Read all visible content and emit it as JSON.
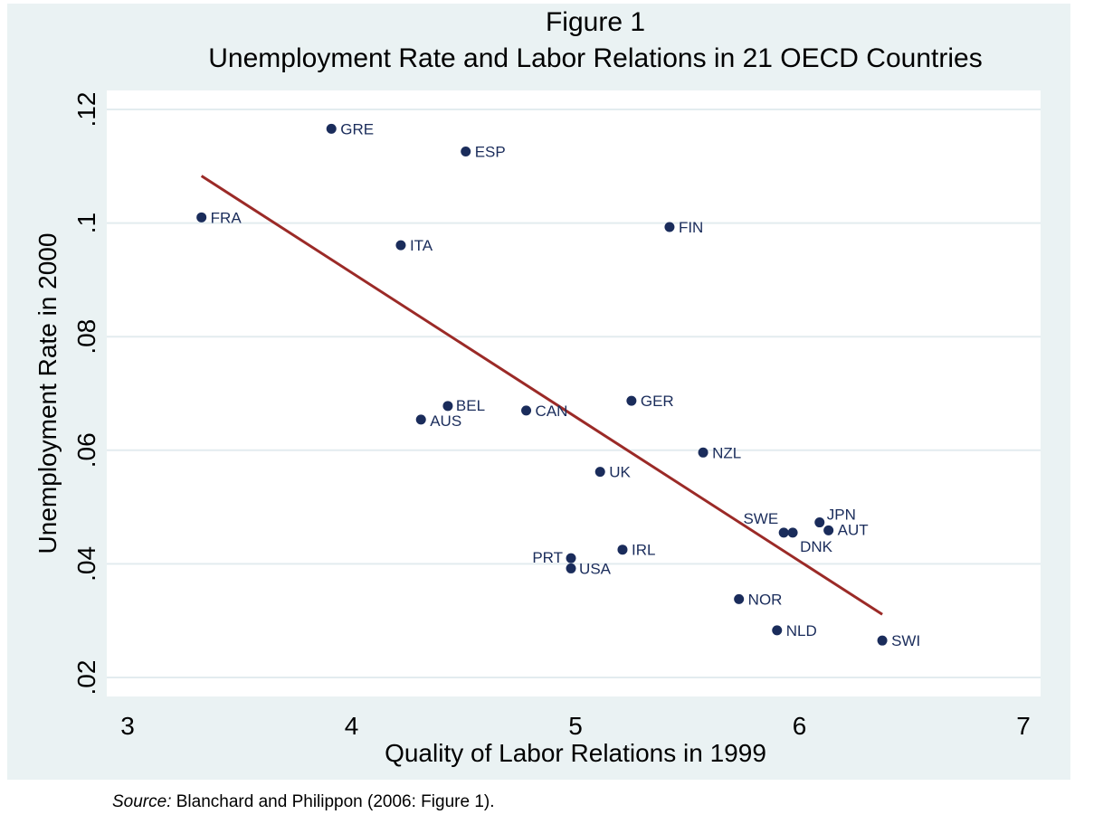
{
  "chart_data": {
    "type": "scatter",
    "title": "Figure 1",
    "subtitle": "Unemployment Rate and Labor Relations in 21 OECD Countries",
    "xlabel": "Quality of Labor Relations in 1999",
    "ylabel": "Unemployment Rate in 2000",
    "xlim": [
      3,
      7
    ],
    "ylim": [
      0.02,
      0.12
    ],
    "xticks": [
      3,
      4,
      5,
      6,
      7
    ],
    "xtick_labels": [
      "3",
      "4",
      "5",
      "6",
      "7"
    ],
    "yticks": [
      0.02,
      0.04,
      0.06,
      0.08,
      0.1,
      0.12
    ],
    "ytick_labels": [
      ".02",
      ".04",
      ".06",
      ".08",
      ".1",
      ".12"
    ],
    "grid": "horizontal",
    "points": [
      {
        "label": "GRE",
        "x": 3.91,
        "y": 0.1166
      },
      {
        "label": "ESP",
        "x": 4.51,
        "y": 0.1126
      },
      {
        "label": "FRA",
        "x": 3.33,
        "y": 0.101
      },
      {
        "label": "FIN",
        "x": 5.42,
        "y": 0.0993
      },
      {
        "label": "ITA",
        "x": 4.22,
        "y": 0.0961
      },
      {
        "label": "GER",
        "x": 5.25,
        "y": 0.0687
      },
      {
        "label": "BEL",
        "x": 4.43,
        "y": 0.0678
      },
      {
        "label": "CAN",
        "x": 4.78,
        "y": 0.067
      },
      {
        "label": "AUS",
        "x": 4.31,
        "y": 0.0654
      },
      {
        "label": "NZL",
        "x": 5.57,
        "y": 0.0596
      },
      {
        "label": "UK",
        "x": 5.11,
        "y": 0.0562
      },
      {
        "label": "JPN",
        "x": 6.09,
        "y": 0.0473
      },
      {
        "label": "AUT",
        "x": 6.13,
        "y": 0.0459
      },
      {
        "label": "SWE",
        "x": 5.93,
        "y": 0.0455
      },
      {
        "label": "DNK",
        "x": 5.97,
        "y": 0.0455
      },
      {
        "label": "IRL",
        "x": 5.21,
        "y": 0.0425
      },
      {
        "label": "PRT",
        "x": 4.98,
        "y": 0.041
      },
      {
        "label": "USA",
        "x": 4.98,
        "y": 0.0392
      },
      {
        "label": "NOR",
        "x": 5.73,
        "y": 0.0338
      },
      {
        "label": "NLD",
        "x": 5.9,
        "y": 0.0283
      },
      {
        "label": "SWI",
        "x": 6.37,
        "y": 0.0265
      }
    ],
    "fit_line": {
      "x": [
        3.33,
        6.37
      ],
      "y": [
        0.1083,
        0.0311
      ]
    },
    "colors": {
      "point": "#1a2c5b",
      "fit_line": "#9b2a27",
      "plot_bg": "#ffffff",
      "outer_bg": "#eaf2f3",
      "grid": "#e3ecef"
    }
  },
  "source": {
    "prefix": "Source:",
    "text": " Blanchard and Philippon (2006: Figure 1)."
  }
}
